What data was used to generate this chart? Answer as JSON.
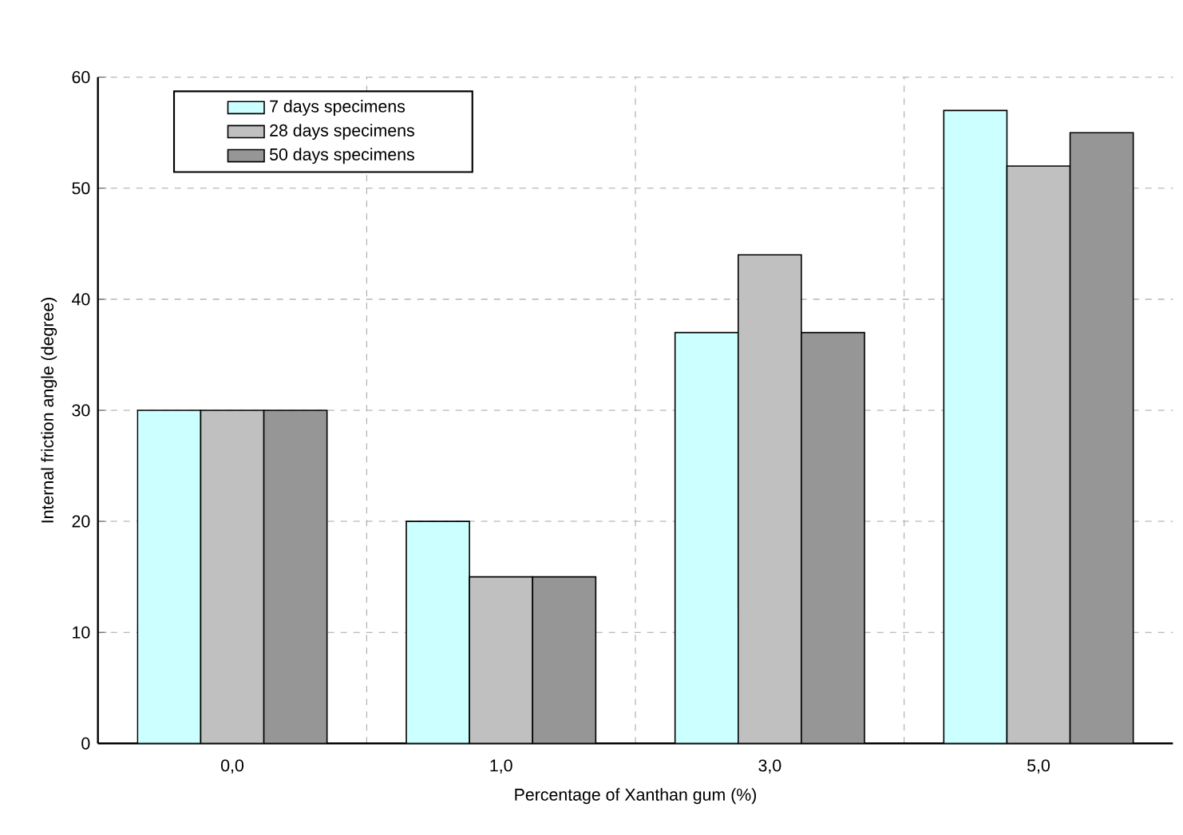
{
  "chart_data": {
    "type": "bar",
    "xlabel": "Percentage of Xanthan gum (%)",
    "ylabel": "Internal friction angle (degree)",
    "categories": [
      "0,0",
      "1,0",
      "3,0",
      "5,0"
    ],
    "series": [
      {
        "name": "7 days specimens",
        "color": "#ccffff",
        "values": [
          30,
          20,
          37,
          57
        ]
      },
      {
        "name": "28 days specimens",
        "color": "#c0c0c0",
        "values": [
          30,
          15,
          44,
          52
        ]
      },
      {
        "name": "50 days specimens",
        "color": "#969696",
        "values": [
          30,
          15,
          37,
          55
        ]
      }
    ],
    "ylim": [
      0,
      60
    ],
    "yticks": [
      0,
      10,
      20,
      30,
      40,
      50,
      60
    ],
    "grid": true,
    "legend": "top left"
  }
}
